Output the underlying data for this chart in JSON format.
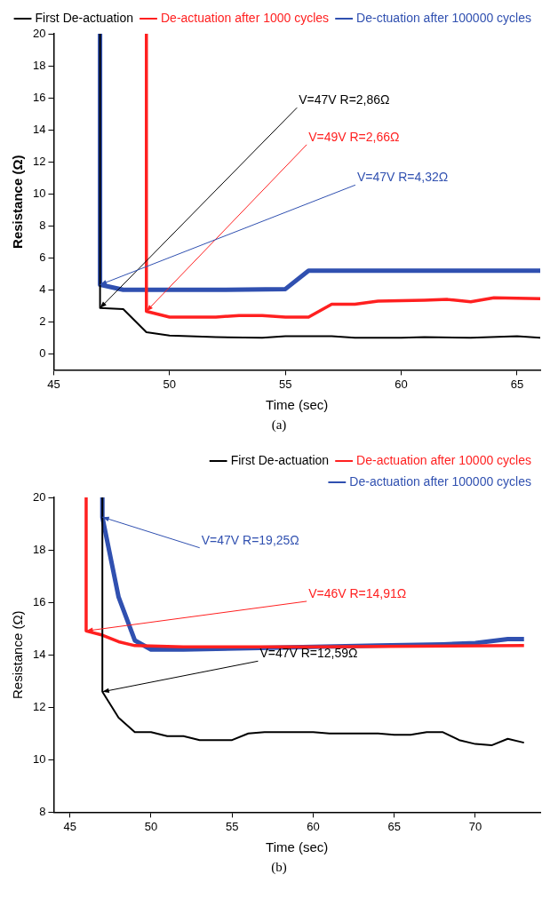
{
  "chart_data": [
    {
      "type": "line",
      "xlabel": "Time (sec)",
      "ylabel": "Resistance (Ω)",
      "xlim": [
        45,
        66
      ],
      "xticks": [
        45,
        50,
        55,
        60,
        65
      ],
      "ylim": [
        -1,
        20
      ],
      "yticks": [
        0,
        2,
        4,
        6,
        8,
        10,
        12,
        14,
        16,
        18,
        20
      ],
      "grid": false,
      "legend": "top right",
      "marker": "none",
      "line_style": "solid",
      "series": [
        {
          "name": "First De-actuation",
          "color": "#000000",
          "x": [
            47,
            47,
            48,
            49,
            50,
            52,
            54,
            55,
            57,
            58,
            60,
            61,
            63,
            65,
            66
          ],
          "values": [
            20,
            2.86,
            2.8,
            1.35,
            1.15,
            1.05,
            1.0,
            1.1,
            1.1,
            1.0,
            1.0,
            1.05,
            1.0,
            1.1,
            1.0
          ]
        },
        {
          "name": "De-actuation after 1000 cycles",
          "color": "#ff2020",
          "x": [
            49,
            49,
            50,
            52,
            53,
            54,
            55,
            56,
            57,
            58,
            59,
            61,
            62,
            63,
            64,
            66
          ],
          "values": [
            20,
            2.66,
            2.3,
            2.3,
            2.4,
            2.4,
            2.3,
            2.3,
            3.1,
            3.1,
            3.3,
            3.35,
            3.4,
            3.25,
            3.5,
            3.45
          ]
        },
        {
          "name": "De-ctuation after 100000 cycles",
          "color": "#3050b0",
          "x": [
            47,
            47,
            48,
            50,
            52,
            55,
            56,
            66
          ],
          "values": [
            20,
            4.32,
            4.0,
            4.0,
            4.0,
            4.05,
            5.2,
            5.2
          ]
        }
      ],
      "annotations": [
        {
          "text": "V=47V R=2,86Ω",
          "x": 47,
          "y": 2.86
        },
        {
          "text": "V=49V R=2,66Ω",
          "x": 49,
          "y": 2.66
        },
        {
          "text": "V=47V R=4,32Ω",
          "x": 47,
          "y": 4.32
        },
        "(a)"
      ]
    },
    {
      "type": "line",
      "xlabel": "Time (sec)",
      "ylabel": "Resistance (Ω)",
      "xlim": [
        44,
        74
      ],
      "xticks": [
        45,
        50,
        55,
        60,
        65,
        70
      ],
      "ylim": [
        8,
        20
      ],
      "yticks": [
        8,
        10,
        12,
        14,
        16,
        18,
        20
      ],
      "grid": false,
      "legend": "top right",
      "marker": "none",
      "line_style": "solid",
      "series": [
        {
          "name": "First De-actuation",
          "color": "#000000",
          "x": [
            47,
            47,
            48,
            49,
            50,
            51,
            52,
            53,
            55,
            56,
            57,
            60,
            61,
            64,
            65,
            66,
            67,
            68,
            69,
            70,
            71,
            72,
            73
          ],
          "values": [
            20,
            12.59,
            11.6,
            11.05,
            11.05,
            10.9,
            10.9,
            10.75,
            10.75,
            11.0,
            11.05,
            11.05,
            11.0,
            11.0,
            10.95,
            10.95,
            11.05,
            11.05,
            10.75,
            10.6,
            10.55,
            10.8,
            10.65
          ]
        },
        {
          "name": "De-actuation after 10000 cycles",
          "color": "#ff2020",
          "x": [
            46,
            46,
            47,
            48,
            49,
            52,
            55,
            60,
            73
          ],
          "values": [
            20,
            14.91,
            14.75,
            14.5,
            14.35,
            14.3,
            14.3,
            14.3,
            14.35
          ]
        },
        {
          "name": "De-actuation after 100000 cycles",
          "color": "#3050b0",
          "x": [
            47,
            47,
            48,
            49,
            50,
            52,
            56,
            60,
            64,
            68,
            70,
            72,
            73
          ],
          "values": [
            20,
            19.25,
            16.2,
            14.55,
            14.2,
            14.2,
            14.25,
            14.3,
            14.35,
            14.4,
            14.45,
            14.6,
            14.6
          ]
        }
      ],
      "annotations": [
        {
          "text": "V=47V R=19,25Ω",
          "x": 47,
          "y": 19.25
        },
        {
          "text": "V=46V R=14,91Ω",
          "x": 46,
          "y": 14.91
        },
        {
          "text": "V=47V R=12,59Ω",
          "x": 47,
          "y": 12.59
        },
        "(b)"
      ]
    }
  ]
}
